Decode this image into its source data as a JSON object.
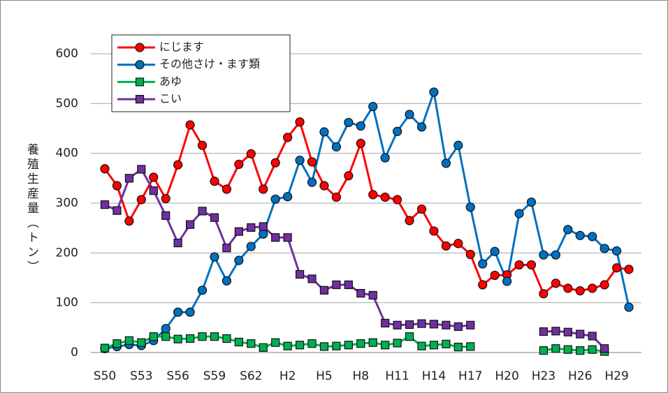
{
  "chart_data": {
    "type": "line",
    "y_label": "養殖生産量（トン）",
    "categories": [
      "S50",
      null,
      null,
      "S53",
      null,
      null,
      "S56",
      null,
      null,
      "S59",
      null,
      null,
      "S62",
      null,
      null,
      "H2",
      null,
      null,
      "H5",
      null,
      null,
      "H8",
      null,
      null,
      "H11",
      null,
      null,
      "H14",
      null,
      null,
      "H17",
      null,
      null,
      "H20",
      null,
      null,
      "H23",
      null,
      null,
      "H26",
      null,
      null,
      "H29",
      null
    ],
    "series": [
      {
        "name": "にじます",
        "color": "#ff0000",
        "marker": "circle",
        "values": [
          369,
          335,
          264,
          307,
          352,
          309,
          377,
          457,
          416,
          344,
          328,
          378,
          399,
          328,
          381,
          432,
          463,
          383,
          335,
          312,
          355,
          420,
          317,
          312,
          307,
          265,
          288,
          244,
          214,
          219,
          197,
          136,
          155,
          156,
          176,
          176,
          118,
          139,
          129,
          124,
          129,
          136,
          170,
          167
        ]
      },
      {
        "name": "その他さけ・ます類",
        "color": "#0070c0",
        "marker": "circle",
        "values": [
          8,
          12,
          16,
          14,
          24,
          48,
          81,
          81,
          125,
          192,
          144,
          185,
          213,
          238,
          308,
          313,
          386,
          342,
          443,
          413,
          462,
          455,
          494,
          391,
          444,
          478,
          453,
          523,
          380,
          416,
          292,
          178,
          203,
          143,
          279,
          302,
          196,
          196,
          247,
          235,
          233,
          209,
          204,
          91
        ]
      },
      {
        "name": "あゆ",
        "color": "#00b050",
        "marker": "square",
        "values": [
          9,
          18,
          24,
          20,
          32,
          32,
          27,
          28,
          32,
          32,
          28,
          21,
          18,
          10,
          20,
          13,
          15,
          18,
          12,
          13,
          15,
          18,
          20,
          15,
          19,
          32,
          13,
          15,
          17,
          11,
          12,
          null,
          null,
          null,
          null,
          null,
          4,
          8,
          6,
          4,
          6,
          2,
          null,
          null
        ]
      },
      {
        "name": "こい",
        "color": "#7030a0",
        "marker": "square",
        "values": [
          297,
          285,
          350,
          368,
          325,
          275,
          220,
          257,
          284,
          271,
          210,
          243,
          251,
          253,
          231,
          231,
          157,
          148,
          125,
          136,
          136,
          119,
          115,
          59,
          55,
          56,
          58,
          57,
          55,
          52,
          55,
          null,
          null,
          null,
          null,
          null,
          42,
          43,
          41,
          37,
          33,
          8,
          null,
          null
        ]
      }
    ],
    "ylim": [
      0,
      600
    ],
    "yticks": [
      0,
      100,
      200,
      300,
      400,
      500,
      600
    ],
    "grid": true,
    "legend": "upper left"
  }
}
